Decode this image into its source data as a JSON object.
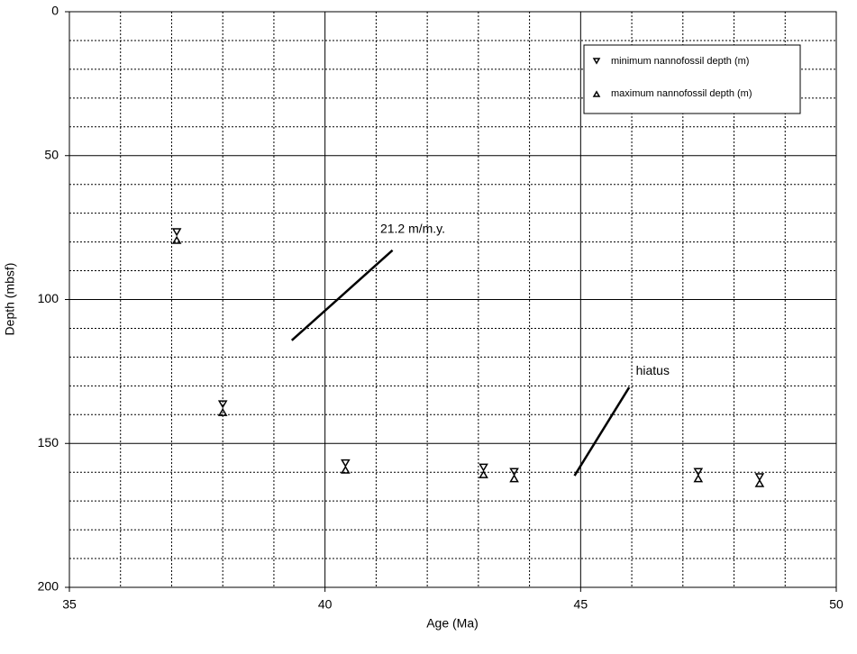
{
  "chart_data": {
    "type": "scatter",
    "xlabel": "Age (Ma)",
    "ylabel": "Depth (mbsf)",
    "xlim": [
      35,
      50
    ],
    "xticks": [
      35,
      40,
      45,
      50
    ],
    "xminorticks": [
      36,
      37,
      38,
      39,
      41,
      42,
      43,
      44,
      46,
      47,
      48,
      49
    ],
    "ylim": [
      0,
      200
    ],
    "yticks": [
      0,
      50,
      100,
      150,
      200
    ],
    "yminorticks": [
      10,
      20,
      30,
      40,
      60,
      70,
      80,
      90,
      110,
      120,
      130,
      140,
      160,
      170,
      180,
      190
    ],
    "y_inverted": true,
    "grid": true,
    "legend": "upper right",
    "series": [
      {
        "name": "minimum nannofossil depth (m)",
        "marker": "triangle-down",
        "color": "#000000",
        "x": [
          37.1,
          38.0,
          40.4,
          43.1,
          43.7,
          47.3,
          48.5
        ],
        "values": [
          76.7,
          136.5,
          157.0,
          158.5,
          160.0,
          160.0,
          161.8
        ]
      },
      {
        "name": "maximum nannofossil depth (m)",
        "marker": "triangle-up",
        "color": "#000000",
        "x": [
          37.1,
          38.0,
          40.4,
          43.1,
          43.7,
          47.3,
          48.5
        ],
        "values": [
          79.2,
          139.0,
          159.0,
          160.6,
          162.0,
          162.0,
          163.7
        ]
      }
    ],
    "annotations": [
      {
        "text": "21.2 m/m.y.",
        "text_x": 41.08,
        "text_y": 75.7,
        "line_x": [
          39.35,
          41.32
        ],
        "line_y": [
          114.2,
          82.9
        ]
      },
      {
        "text": "hiatus",
        "text_x": 46.08,
        "text_y": 124.9,
        "line_x": [
          44.88,
          45.95
        ],
        "line_y": [
          161.2,
          130.5
        ]
      }
    ]
  }
}
